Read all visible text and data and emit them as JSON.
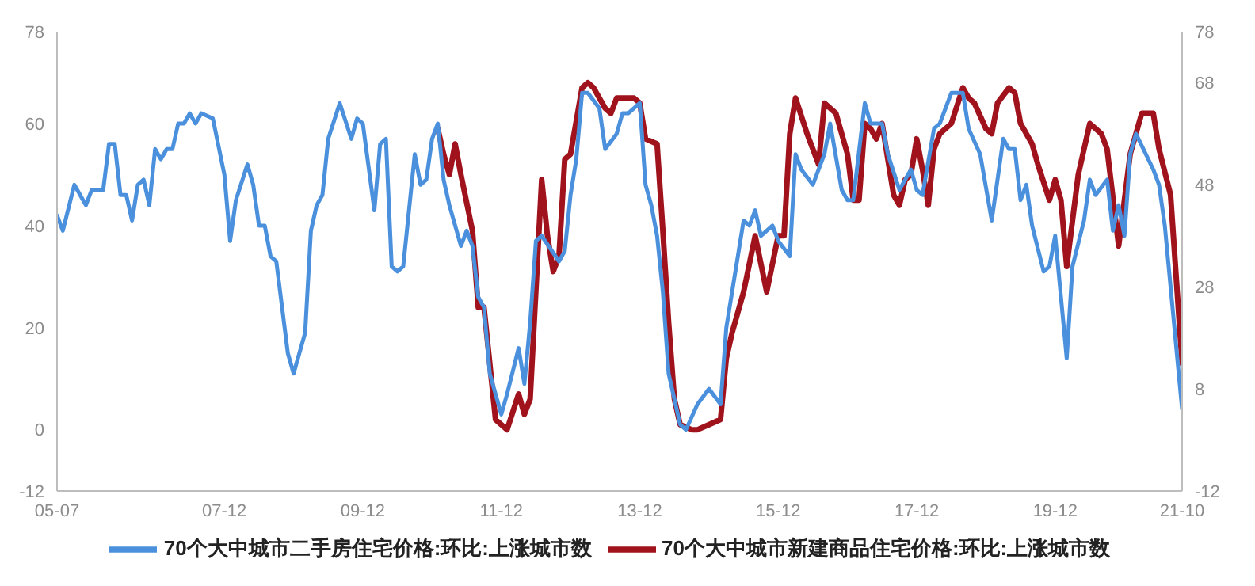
{
  "chart_data": {
    "type": "line",
    "legend": "bottom",
    "grid": false,
    "xlim": [
      "2005-07",
      "2021-10"
    ],
    "xticks": [
      {
        "value": "2005-07",
        "label": "05-07"
      },
      {
        "value": "2007-12",
        "label": "07-12"
      },
      {
        "value": "2009-12",
        "label": "09-12"
      },
      {
        "value": "2011-12",
        "label": "11-12"
      },
      {
        "value": "2013-12",
        "label": "13-12"
      },
      {
        "value": "2015-12",
        "label": "15-12"
      },
      {
        "value": "2017-12",
        "label": "17-12"
      },
      {
        "value": "2019-12",
        "label": "19-12"
      },
      {
        "value": "2021-10",
        "label": "21-10"
      }
    ],
    "ylim": [
      -12,
      78
    ],
    "yticks": [
      -12,
      0,
      20,
      40,
      60,
      78
    ],
    "y2lim": [
      -12,
      78
    ],
    "y2ticks": [
      -12,
      8,
      28,
      48,
      68,
      78
    ],
    "series": [
      {
        "name": "70个大中城市新建商品住宅价格:环比:上涨城市数",
        "color": "#a0121c",
        "x": [
          "2011-01",
          "2011-02",
          "2011-03",
          "2011-04",
          "2011-05",
          "2011-07",
          "2011-08",
          "2011-09",
          "2011-11",
          "2012-01",
          "2012-03",
          "2012-04",
          "2012-05",
          "2012-07",
          "2012-08",
          "2012-09",
          "2012-10",
          "2012-11",
          "2012-12",
          "2013-02",
          "2013-03",
          "2013-04",
          "2013-06",
          "2013-07",
          "2013-08",
          "2013-09",
          "2013-11",
          "2013-12",
          "2014-01",
          "2014-03",
          "2014-04",
          "2014-05",
          "2014-06",
          "2014-07",
          "2014-09",
          "2014-10",
          "2014-12",
          "2015-02",
          "2015-03",
          "2015-04",
          "2015-06",
          "2015-08",
          "2015-10",
          "2015-12",
          "2016-01",
          "2016-02",
          "2016-03",
          "2016-05",
          "2016-07",
          "2016-08",
          "2016-09",
          "2016-10",
          "2016-12",
          "2017-01",
          "2017-02",
          "2017-03",
          "2017-04",
          "2017-05",
          "2017-06",
          "2017-08",
          "2017-09",
          "2017-10",
          "2017-11",
          "2017-12",
          "2018-01",
          "2018-02",
          "2018-03",
          "2018-04",
          "2018-06",
          "2018-08",
          "2018-09",
          "2018-10",
          "2018-12",
          "2019-01",
          "2019-02",
          "2019-04",
          "2019-05",
          "2019-06",
          "2019-08",
          "2019-09",
          "2019-11",
          "2019-12",
          "2020-01",
          "2020-02",
          "2020-04",
          "2020-06",
          "2020-07",
          "2020-08",
          "2020-09",
          "2020-11",
          "2021-01",
          "2021-03",
          "2021-05",
          "2021-06",
          "2021-08",
          "2021-10"
        ],
        "values": [
          59,
          54,
          50,
          56,
          50,
          39,
          24,
          24,
          2,
          0,
          7,
          3,
          6,
          49,
          38,
          31,
          34,
          53,
          54,
          67,
          68,
          67,
          63,
          62,
          65,
          65,
          65,
          64,
          57,
          56,
          39,
          21,
          6,
          1,
          0,
          0,
          1,
          2,
          14,
          19,
          27,
          38,
          27,
          38,
          38,
          58,
          65,
          58,
          52,
          64,
          63,
          62,
          54,
          45,
          45,
          60,
          59,
          57,
          60,
          46,
          44,
          49,
          50,
          57,
          51,
          44,
          55,
          58,
          60,
          67,
          65,
          64,
          59,
          58,
          64,
          67,
          66,
          60,
          56,
          52,
          45,
          49,
          45,
          32,
          50,
          60,
          59,
          58,
          55,
          36,
          54,
          62,
          62,
          55,
          46,
          13
        ]
      },
      {
        "name": "70个大中城市二手房住宅价格:环比:上涨城市数",
        "color": "#4a90dc",
        "x": [
          "2005-07",
          "2005-08",
          "2005-10",
          "2005-12",
          "2006-01",
          "2006-03",
          "2006-04",
          "2006-05",
          "2006-06",
          "2006-07",
          "2006-08",
          "2006-09",
          "2006-10",
          "2006-11",
          "2006-12",
          "2007-01",
          "2007-02",
          "2007-03",
          "2007-04",
          "2007-05",
          "2007-06",
          "2007-07",
          "2007-08",
          "2007-10",
          "2007-12",
          "2008-01",
          "2008-02",
          "2008-04",
          "2008-05",
          "2008-06",
          "2008-07",
          "2008-08",
          "2008-09",
          "2008-10",
          "2008-11",
          "2008-12",
          "2009-02",
          "2009-03",
          "2009-04",
          "2009-05",
          "2009-06",
          "2009-08",
          "2009-10",
          "2009-11",
          "2009-12",
          "2010-02",
          "2010-03",
          "2010-04",
          "2010-05",
          "2010-06",
          "2010-07",
          "2010-09",
          "2010-10",
          "2010-11",
          "2010-12",
          "2011-01",
          "2011-02",
          "2011-03",
          "2011-05",
          "2011-06",
          "2011-07",
          "2011-08",
          "2011-09",
          "2011-10",
          "2011-12",
          "2012-01",
          "2012-03",
          "2012-04",
          "2012-05",
          "2012-06",
          "2012-07",
          "2012-10",
          "2012-11",
          "2012-12",
          "2013-01",
          "2013-02",
          "2013-03",
          "2013-05",
          "2013-06",
          "2013-08",
          "2013-09",
          "2013-10",
          "2013-12",
          "2014-01",
          "2014-02",
          "2014-03",
          "2014-04",
          "2014-05",
          "2014-07",
          "2014-08",
          "2014-10",
          "2014-12",
          "2015-02",
          "2015-03",
          "2015-05",
          "2015-06",
          "2015-07",
          "2015-08",
          "2015-09",
          "2015-11",
          "2015-12",
          "2016-02",
          "2016-03",
          "2016-04",
          "2016-06",
          "2016-08",
          "2016-09",
          "2016-11",
          "2016-12",
          "2017-01",
          "2017-03",
          "2017-04",
          "2017-06",
          "2017-07",
          "2017-09",
          "2017-11",
          "2017-12",
          "2018-01",
          "2018-03",
          "2018-04",
          "2018-06",
          "2018-08",
          "2018-09",
          "2018-11",
          "2019-01",
          "2019-03",
          "2019-04",
          "2019-05",
          "2019-06",
          "2019-07",
          "2019-08",
          "2019-10",
          "2019-11",
          "2019-12",
          "2020-02",
          "2020-03",
          "2020-05",
          "2020-06",
          "2020-07",
          "2020-09",
          "2020-10",
          "2020-11",
          "2020-12",
          "2021-01",
          "2021-02",
          "2021-05",
          "2021-06",
          "2021-07",
          "2021-08",
          "2021-10"
        ],
        "values": [
          42,
          39,
          48,
          44,
          47,
          47,
          56,
          56,
          46,
          46,
          41,
          48,
          49,
          44,
          55,
          53,
          55,
          55,
          60,
          60,
          62,
          60,
          62,
          61,
          50,
          37,
          45,
          52,
          48,
          40,
          40,
          34,
          33,
          24,
          15,
          11,
          19,
          39,
          44,
          46,
          57,
          64,
          57,
          61,
          60,
          43,
          56,
          57,
          32,
          31,
          32,
          54,
          48,
          49,
          57,
          60,
          49,
          44,
          36,
          39,
          36,
          26,
          24,
          11,
          3,
          7,
          16,
          9,
          21,
          37,
          38,
          33,
          35,
          46,
          53,
          66,
          66,
          63,
          55,
          58,
          62,
          62,
          64,
          48,
          44,
          38,
          27,
          11,
          1,
          0,
          5,
          8,
          5,
          20,
          34,
          41,
          40,
          43,
          38,
          40,
          37,
          34,
          54,
          51,
          48,
          54,
          60,
          47,
          45,
          45,
          64,
          60,
          60,
          54,
          47,
          51,
          47,
          46,
          59,
          60,
          66,
          66,
          59,
          54,
          41,
          57,
          55,
          55,
          45,
          48,
          40,
          31,
          32,
          38,
          14,
          32,
          41,
          49,
          46,
          49,
          39,
          44,
          38,
          54,
          58,
          51,
          48,
          40,
          28,
          4
        ]
      }
    ]
  }
}
